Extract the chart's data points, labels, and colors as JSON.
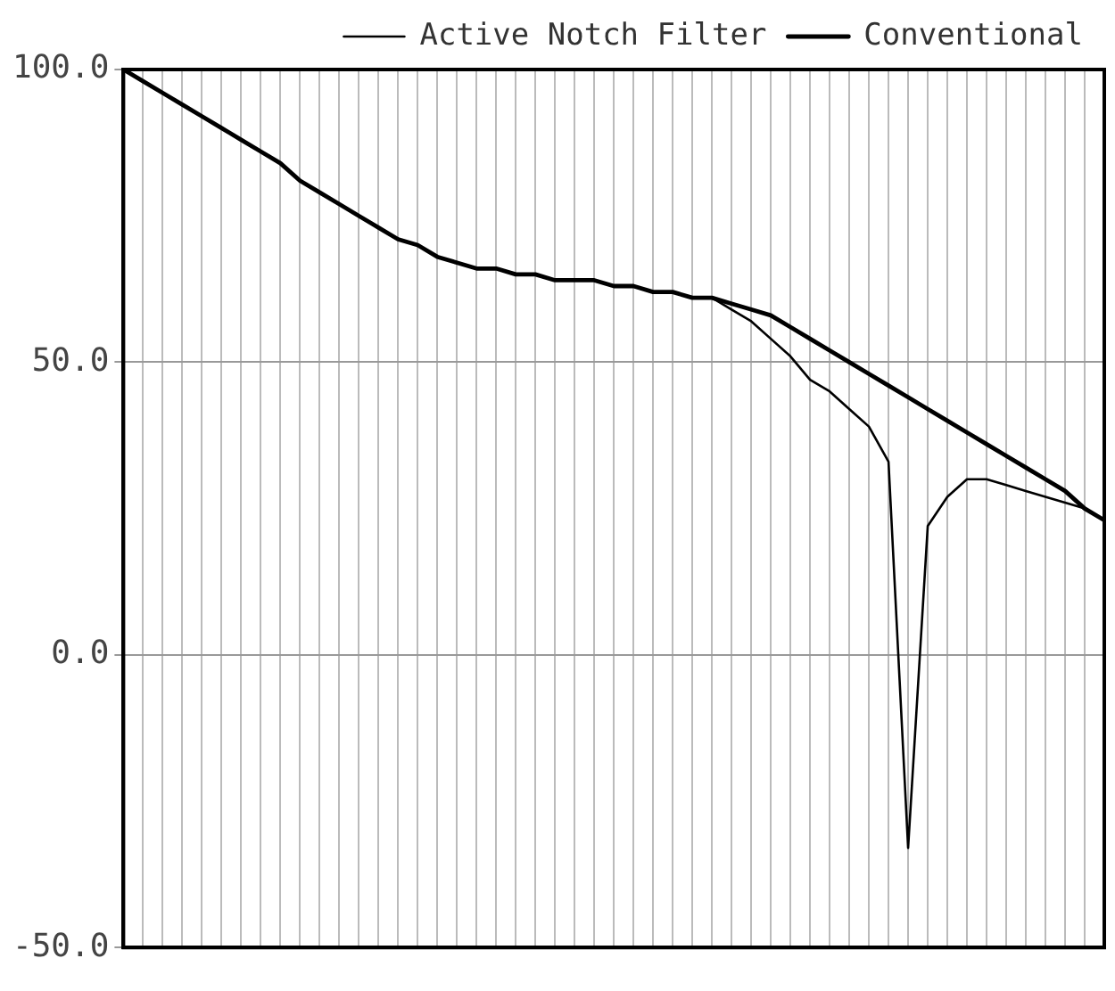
{
  "chart_data": {
    "type": "line",
    "categories": [
      null,
      null,
      null,
      null,
      null,
      null,
      null,
      null,
      null,
      null,
      null,
      null,
      null,
      null,
      null,
      null,
      null,
      null,
      null,
      null,
      null,
      null,
      null,
      null,
      null,
      null,
      null,
      null,
      null,
      null,
      null,
      null,
      null,
      null,
      null,
      null,
      null,
      null,
      null,
      null,
      null,
      null,
      null,
      null,
      null,
      null,
      null,
      null,
      null,
      null,
      null
    ],
    "ylim": [
      -50,
      100
    ],
    "yticks": [
      {
        "value": -50,
        "label": "-50.0"
      },
      {
        "value": 0,
        "label": "0.0"
      },
      {
        "value": 50,
        "label": "50.0"
      },
      {
        "value": 100,
        "label": "100.0"
      }
    ],
    "grid": true,
    "legend": "top right",
    "marker": "none",
    "series": [
      {
        "name": "Active Notch Filter",
        "color": "#000000",
        "values": [
          100,
          98,
          96,
          94,
          92,
          90,
          88,
          86,
          84,
          81,
          79,
          77,
          75,
          73,
          71,
          70,
          68,
          67,
          66,
          66,
          65,
          65,
          64,
          64,
          64,
          63,
          63,
          62,
          62,
          61,
          61,
          59,
          57,
          54,
          51,
          47,
          45,
          42,
          39,
          33,
          -33,
          22,
          27,
          30,
          30,
          29,
          28,
          27,
          26,
          25,
          23
        ]
      },
      {
        "name": "Conventional",
        "color": "#000000",
        "values": [
          100,
          98,
          96,
          94,
          92,
          90,
          88,
          86,
          84,
          81,
          79,
          77,
          75,
          73,
          71,
          70,
          68,
          67,
          66,
          66,
          65,
          65,
          64,
          64,
          64,
          63,
          63,
          62,
          62,
          61,
          61,
          60,
          59,
          58,
          56,
          54,
          52,
          50,
          48,
          46,
          44,
          42,
          40,
          38,
          36,
          34,
          32,
          30,
          28,
          25,
          23
        ]
      }
    ]
  }
}
